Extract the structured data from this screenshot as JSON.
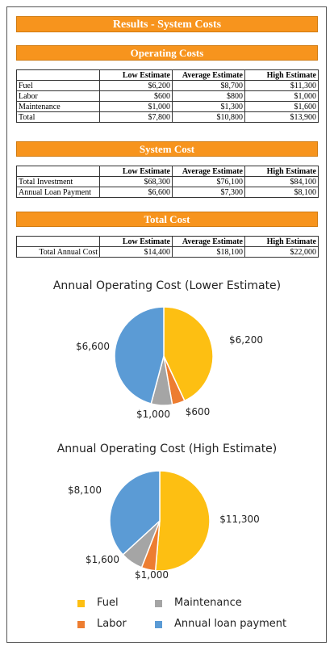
{
  "page": {
    "title": "Results - System Costs"
  },
  "operating_costs": {
    "title": "Operating Costs",
    "headers": [
      "",
      "Low Estimate",
      "Average Estimate",
      "High Estimate"
    ],
    "rows": [
      [
        "Fuel",
        "$6,200",
        "$8,700",
        "$11,300"
      ],
      [
        "Labor",
        "$600",
        "$800",
        "$1,000"
      ],
      [
        "Maintenance",
        "$1,000",
        "$1,300",
        "$1,600"
      ],
      [
        "Total",
        "$7,800",
        "$10,800",
        "$13,900"
      ]
    ]
  },
  "system_cost": {
    "title": "System Cost",
    "headers": [
      "",
      "Low Estimate",
      "Average Estimate",
      "High Estimate"
    ],
    "rows": [
      [
        "Total Investment",
        "$68,300",
        "$76,100",
        "$84,100"
      ],
      [
        "Annual Loan Payment",
        "$6,600",
        "$7,300",
        "$8,100"
      ]
    ]
  },
  "total_cost": {
    "title": "Total Cost",
    "headers": [
      "",
      "Low Estimate",
      "Average Estimate",
      "High Estimate"
    ],
    "rows": [
      [
        "Total Annual Cost",
        "$14,400",
        "$18,100",
        "$22,000"
      ]
    ]
  },
  "chart_data": [
    {
      "type": "pie",
      "title": "Annual Operating Cost (Lower Estimate)",
      "categories": [
        "Fuel",
        "Labor",
        "Maintenance",
        "Annual loan payment"
      ],
      "values": [
        6200,
        600,
        1000,
        6600
      ],
      "labels": [
        "$6,200",
        "$600",
        "$1,000",
        "$6,600"
      ],
      "colors": [
        "#fdbf12",
        "#ed7d31",
        "#a5a5a5",
        "#5b9bd5"
      ]
    },
    {
      "type": "pie",
      "title": "Annual Operating Cost (High Estimate)",
      "categories": [
        "Fuel",
        "Labor",
        "Maintenance",
        "Annual loan payment"
      ],
      "values": [
        11300,
        1000,
        1600,
        8100
      ],
      "labels": [
        "$11,300",
        "$1,000",
        "$1,600",
        "$8,100"
      ],
      "colors": [
        "#fdbf12",
        "#ed7d31",
        "#a5a5a5",
        "#5b9bd5"
      ]
    }
  ],
  "legend": {
    "items": [
      {
        "label": "Fuel",
        "color": "#fdbf12"
      },
      {
        "label": "Maintenance",
        "color": "#a5a5a5"
      },
      {
        "label": "Labor",
        "color": "#ed7d31"
      },
      {
        "label": "Annual loan payment",
        "color": "#5b9bd5"
      }
    ]
  }
}
